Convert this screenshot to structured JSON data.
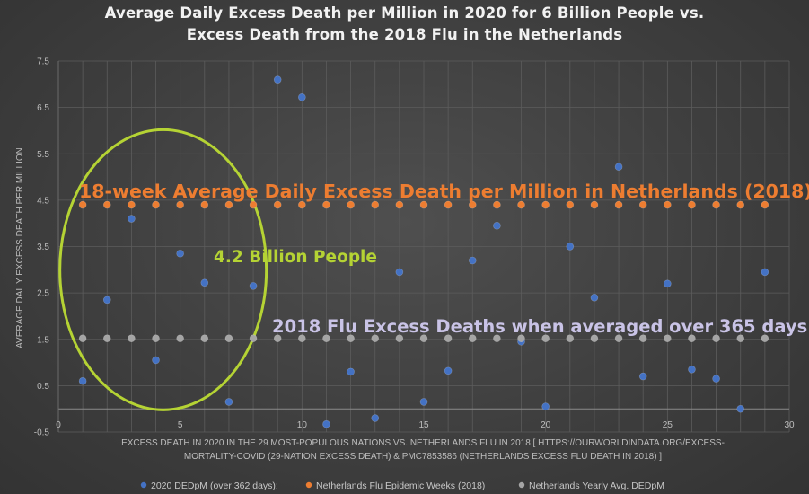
{
  "chart_data": {
    "type": "scatter",
    "title": [
      "Average Daily Excess Death per Million in 2020 for 6 Billion People vs.",
      "Excess Death from the 2018 Flu in the Netherlands"
    ],
    "xlabel": [
      "EXCESS DEATH IN 2020 IN THE 29 MOST-POPULOUS NATIONS VS. NETHERLANDS FLU IN 2018 [ HTTPS://OURWORLDINDATA.ORG/EXCESS-",
      "MORTALITY-COVID (29-NATION EXCESS DEATH) & PMC7853586 (NETHERLANDS EXCESS FLU DEATH IN 2018) ]"
    ],
    "ylabel": "AVERAGE DAILY EXCESS DEATH PER MILLION",
    "xlim": [
      0,
      30
    ],
    "ylim": [
      -0.5,
      7.5
    ],
    "xticks": [
      0,
      5,
      10,
      15,
      20,
      25,
      30
    ],
    "yticks": [
      -0.5,
      0.5,
      1.5,
      2.5,
      3.5,
      4.5,
      5.5,
      6.5,
      7.5
    ],
    "ytick_labels": [
      "-0.5",
      "0.5",
      "1.5",
      "2.5",
      "3.5",
      "4.5",
      "5.5",
      "6.5",
      "7.5"
    ],
    "grid": true,
    "legend_position": "bottom",
    "series": [
      {
        "name": "2020 DEDpM (over 362 days):",
        "color": "#4472c4",
        "x": [
          1,
          2,
          3,
          4,
          5,
          6,
          7,
          8,
          9,
          10,
          11,
          12,
          13,
          14,
          15,
          16,
          17,
          18,
          19,
          20,
          21,
          22,
          23,
          24,
          25,
          26,
          27,
          28,
          29
        ],
        "y": [
          0.6,
          2.35,
          4.1,
          1.05,
          3.35,
          2.72,
          0.15,
          2.65,
          7.1,
          6.72,
          -0.33,
          0.8,
          -0.2,
          2.95,
          0.15,
          0.82,
          3.2,
          3.95,
          1.45,
          0.05,
          3.5,
          2.4,
          5.22,
          0.7,
          2.7,
          0.85,
          0.65,
          0.0,
          2.95
        ]
      },
      {
        "name": "Netherlands Flu Epidemic Weeks (2018)",
        "color": "#ed7d31",
        "x": [
          1,
          2,
          3,
          4,
          5,
          6,
          7,
          8,
          9,
          10,
          11,
          12,
          13,
          14,
          15,
          16,
          17,
          18,
          19,
          20,
          21,
          22,
          23,
          24,
          25,
          26,
          27,
          28,
          29
        ],
        "y": [
          4.4,
          4.4,
          4.4,
          4.4,
          4.4,
          4.4,
          4.4,
          4.4,
          4.4,
          4.4,
          4.4,
          4.4,
          4.4,
          4.4,
          4.4,
          4.4,
          4.4,
          4.4,
          4.4,
          4.4,
          4.4,
          4.4,
          4.4,
          4.4,
          4.4,
          4.4,
          4.4,
          4.4,
          4.4
        ]
      },
      {
        "name": "Netherlands Yearly Avg. DEDpM",
        "color": "#a5a5a5",
        "x": [
          1,
          2,
          3,
          4,
          5,
          6,
          7,
          8,
          9,
          10,
          11,
          12,
          13,
          14,
          15,
          16,
          17,
          18,
          19,
          20,
          21,
          22,
          23,
          24,
          25,
          26,
          27,
          28,
          29
        ],
        "y": [
          1.52,
          1.52,
          1.52,
          1.52,
          1.52,
          1.52,
          1.52,
          1.52,
          1.52,
          1.52,
          1.52,
          1.52,
          1.52,
          1.52,
          1.52,
          1.52,
          1.52,
          1.52,
          1.52,
          1.52,
          1.52,
          1.52,
          1.52,
          1.52,
          1.52,
          1.52,
          1.52,
          1.52,
          1.52
        ]
      }
    ],
    "annotations": [
      {
        "name": "annotation-flu-weeks",
        "text": "18-week Average Daily Excess Death per Million in Netherlands (2018)",
        "color": "#ed7d31"
      },
      {
        "name": "annotation-billion-people",
        "text": "4.2 Billion People",
        "color": "#b5d334"
      },
      {
        "name": "annotation-flu-yearly",
        "text": "2018 Flu Excess Deaths when averaged over 365 days",
        "color": "#c9c3e6"
      }
    ],
    "highlight_ellipse_color": "#b5d334"
  }
}
